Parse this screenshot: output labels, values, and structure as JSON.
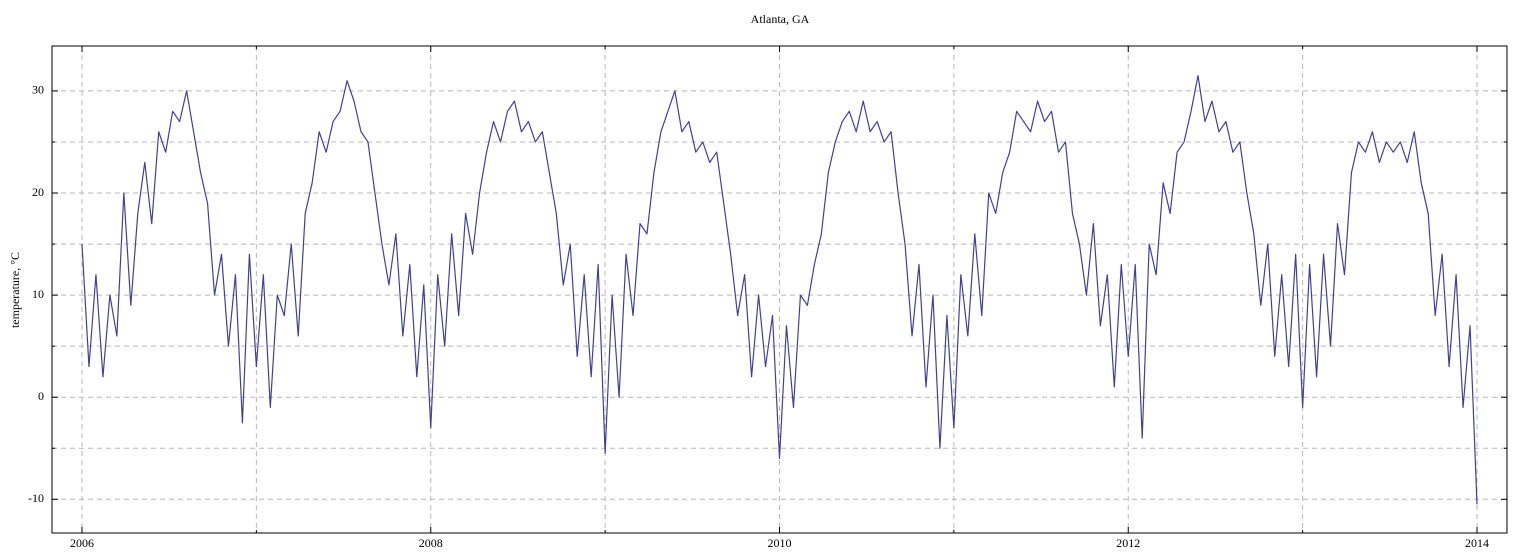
{
  "chart_data": {
    "type": "line",
    "title": "Atlanta, GA",
    "y_label": "temperature, °C",
    "xlim": [
      2005.828,
      2014.172
    ],
    "ylim": [
      -13.3,
      34.4
    ],
    "xticks": [
      2006,
      2008,
      2010,
      2012,
      2014
    ],
    "xminor": [
      2007,
      2009,
      2011,
      2013
    ],
    "yticks": [
      -10,
      0,
      10,
      20,
      30
    ],
    "yminor": [
      -5,
      5,
      15,
      25
    ],
    "grid": true,
    "series": [
      {
        "name": "Atlanta, GA",
        "color": "#40409c",
        "x": [
          2006,
          2006.04,
          2006.08,
          2006.12,
          2006.16,
          2006.2,
          2006.24,
          2006.28,
          2006.32,
          2006.36,
          2006.4,
          2006.44,
          2006.48,
          2006.52,
          2006.56,
          2006.6,
          2006.64,
          2006.68,
          2006.72,
          2006.76,
          2006.8,
          2006.84,
          2006.88,
          2006.92,
          2006.96,
          2007,
          2007.04,
          2007.08,
          2007.12,
          2007.16,
          2007.2,
          2007.24,
          2007.28,
          2007.32,
          2007.36,
          2007.4,
          2007.44,
          2007.48,
          2007.52,
          2007.56,
          2007.6,
          2007.64,
          2007.68,
          2007.72,
          2007.76,
          2007.8,
          2007.84,
          2007.88,
          2007.92,
          2007.96,
          2008,
          2008.04,
          2008.08,
          2008.12,
          2008.16,
          2008.2,
          2008.24,
          2008.28,
          2008.32,
          2008.36,
          2008.4,
          2008.44,
          2008.48,
          2008.52,
          2008.56,
          2008.6,
          2008.64,
          2008.68,
          2008.72,
          2008.76,
          2008.8,
          2008.84,
          2008.88,
          2008.92,
          2008.96,
          2009,
          2009.04,
          2009.08,
          2009.12,
          2009.16,
          2009.2,
          2009.24,
          2009.28,
          2009.32,
          2009.36,
          2009.4,
          2009.44,
          2009.48,
          2009.52,
          2009.56,
          2009.6,
          2009.64,
          2009.68,
          2009.72,
          2009.76,
          2009.8,
          2009.84,
          2009.88,
          2009.92,
          2009.96,
          2010,
          2010.04,
          2010.08,
          2010.12,
          2010.16,
          2010.2,
          2010.24,
          2010.28,
          2010.32,
          2010.36,
          2010.4,
          2010.44,
          2010.48,
          2010.52,
          2010.56,
          2010.6,
          2010.64,
          2010.68,
          2010.72,
          2010.76,
          2010.8,
          2010.84,
          2010.88,
          2010.92,
          2010.96,
          2011,
          2011.04,
          2011.08,
          2011.12,
          2011.16,
          2011.2,
          2011.24,
          2011.28,
          2011.32,
          2011.36,
          2011.4,
          2011.44,
          2011.48,
          2011.52,
          2011.56,
          2011.6,
          2011.64,
          2011.68,
          2011.72,
          2011.76,
          2011.8,
          2011.84,
          2011.88,
          2011.92,
          2011.96,
          2012,
          2012.04,
          2012.08,
          2012.12,
          2012.16,
          2012.2,
          2012.24,
          2012.28,
          2012.32,
          2012.36,
          2012.4,
          2012.44,
          2012.48,
          2012.52,
          2012.56,
          2012.6,
          2012.64,
          2012.68,
          2012.72,
          2012.76,
          2012.8,
          2012.84,
          2012.88,
          2012.92,
          2012.96,
          2013,
          2013.04,
          2013.08,
          2013.12,
          2013.16,
          2013.2,
          2013.24,
          2013.28,
          2013.32,
          2013.36,
          2013.4,
          2013.44,
          2013.48,
          2013.52,
          2013.56,
          2013.6,
          2013.64,
          2013.68,
          2013.72,
          2013.76,
          2013.8,
          2013.84,
          2013.88,
          2013.92,
          2013.96,
          2014
        ],
        "values": [
          15,
          3,
          12,
          2,
          10,
          6,
          20,
          9,
          18,
          23,
          17,
          26,
          24,
          28,
          27,
          30,
          26,
          22,
          19,
          10,
          14,
          5,
          12,
          -2.5,
          14,
          3,
          12,
          -1,
          10,
          8,
          15,
          6,
          18,
          21,
          26,
          24,
          27,
          28,
          31,
          29,
          26,
          25,
          20,
          15,
          11,
          16,
          6,
          13,
          2,
          11,
          -3,
          12,
          5,
          16,
          8,
          18,
          14,
          20,
          24,
          27,
          25,
          28,
          29,
          26,
          27,
          25,
          26,
          22,
          18,
          11,
          15,
          4,
          12,
          2,
          13,
          -5.5,
          10,
          0,
          14,
          8,
          17,
          16,
          22,
          26,
          28,
          30,
          26,
          27,
          24,
          25,
          23,
          24,
          19,
          14,
          8,
          12,
          2,
          10,
          3,
          8,
          -6,
          7,
          -1,
          10,
          9,
          13,
          16,
          22,
          25,
          27,
          28,
          26,
          29,
          26,
          27,
          25,
          26,
          20,
          15,
          6,
          13,
          1,
          10,
          -5,
          8,
          -3,
          12,
          6,
          16,
          8,
          20,
          18,
          22,
          24,
          28,
          27,
          26,
          29,
          27,
          28,
          24,
          25,
          18,
          15,
          10,
          17,
          7,
          12,
          1,
          13,
          4,
          13,
          -4,
          15,
          12,
          21,
          18,
          24,
          25,
          28,
          31.5,
          27,
          29,
          26,
          27,
          24,
          25,
          20,
          16,
          9,
          15,
          4,
          12,
          3,
          14,
          -1,
          13,
          2,
          14,
          5,
          17,
          12,
          22,
          25,
          24,
          26,
          23,
          25,
          24,
          25,
          23,
          26,
          21,
          18,
          8,
          14,
          3,
          12,
          -1,
          7,
          -10.5
        ]
      }
    ]
  }
}
